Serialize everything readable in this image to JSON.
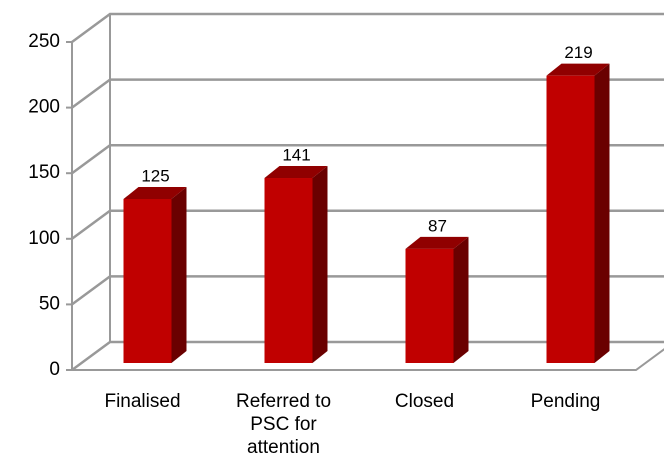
{
  "chart_data": {
    "type": "bar3d",
    "categories": [
      "Finalised",
      "Referred to PSC for attention",
      "Closed",
      "Pending"
    ],
    "values": [
      125,
      141,
      87,
      219
    ],
    "color": "#c00000",
    "ylim": [
      0,
      250
    ],
    "yticks": [
      0,
      50,
      100,
      150,
      200,
      250
    ],
    "grid": true
  }
}
